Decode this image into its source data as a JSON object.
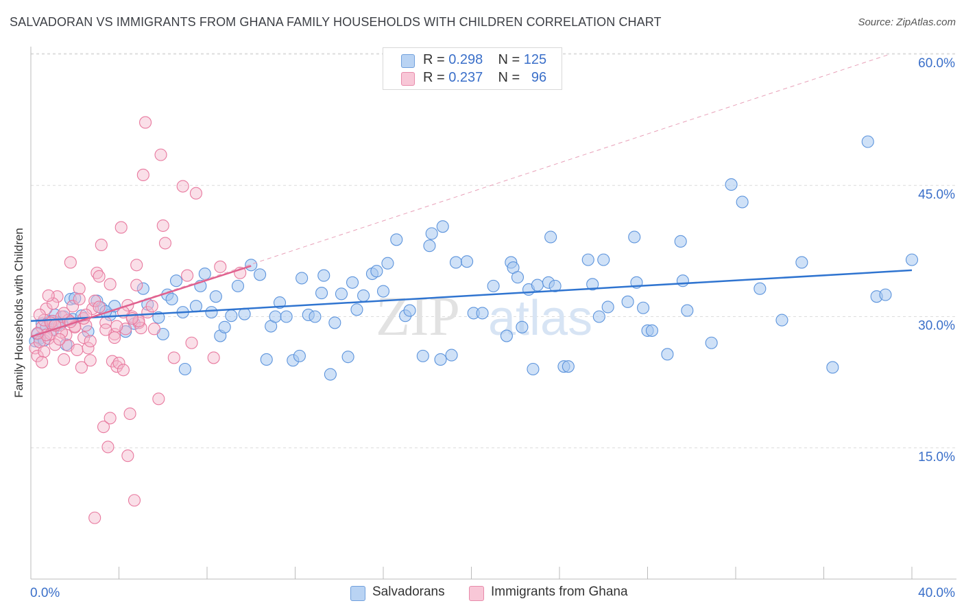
{
  "title": "SALVADORAN VS IMMIGRANTS FROM GHANA FAMILY HOUSEHOLDS WITH CHILDREN CORRELATION CHART",
  "source": "Source: ZipAtlas.com",
  "watermark": {
    "zip": "ZIP",
    "atlas": "atlas"
  },
  "legend_top": [
    {
      "r_label": "R =",
      "r_value": "0.298",
      "n_label": "N =",
      "n_value": "125",
      "color": "#a8c8f0"
    },
    {
      "r_label": "R =",
      "r_value": "0.237",
      "n_label": "N =",
      "n_value": "96",
      "color": "#f5b8cc"
    }
  ],
  "legend_bottom": [
    {
      "label": "Salvadorans",
      "color": "#a8c8f0"
    },
    {
      "label": "Immigrants from Ghana",
      "color": "#f5b8cc"
    }
  ],
  "chart_data": {
    "type": "scatter",
    "title": "SALVADORAN VS IMMIGRANTS FROM GHANA FAMILY HOUSEHOLDS WITH CHILDREN CORRELATION CHART",
    "xlabel": "",
    "ylabel": "Family Households with Children",
    "xlim": [
      0,
      40
    ],
    "ylim": [
      0,
      60
    ],
    "x_tick_labels": [
      "0.0%",
      "40.0%"
    ],
    "y_tick_labels": [
      {
        "value": 15,
        "label": "15.0%"
      },
      {
        "value": 30,
        "label": "30.0%"
      },
      {
        "value": 45,
        "label": "45.0%"
      },
      {
        "value": 60,
        "label": "60.0%"
      }
    ],
    "grid": true,
    "series": [
      {
        "name": "Salvadorans",
        "color": "#5b93dc",
        "fill": "#a8c8f0",
        "trend": {
          "x": [
            0,
            40
          ],
          "y": [
            29.5,
            35.3
          ]
        },
        "points": [
          [
            0.2,
            27.2
          ],
          [
            0.3,
            28.0
          ],
          [
            0.4,
            27.5
          ],
          [
            0.5,
            29.2
          ],
          [
            0.7,
            28.8
          ],
          [
            0.9,
            29.5
          ],
          [
            1.1,
            30.2
          ],
          [
            1.2,
            29.0
          ],
          [
            1.4,
            29.3
          ],
          [
            1.5,
            30.0
          ],
          [
            1.6,
            26.8
          ],
          [
            1.8,
            32.0
          ],
          [
            1.9,
            29.7
          ],
          [
            2.3,
            30.1
          ],
          [
            2.6,
            28.3
          ],
          [
            3.0,
            31.8
          ],
          [
            3.2,
            31.0
          ],
          [
            3.6,
            30.2
          ],
          [
            3.8,
            31.2
          ],
          [
            4.3,
            28.3
          ],
          [
            4.7,
            29.2
          ],
          [
            5.1,
            33.2
          ],
          [
            5.3,
            31.4
          ],
          [
            5.8,
            29.9
          ],
          [
            6.0,
            28.0
          ],
          [
            6.2,
            32.5
          ],
          [
            6.4,
            32.0
          ],
          [
            6.6,
            34.1
          ],
          [
            6.9,
            30.5
          ],
          [
            7.0,
            24.0
          ],
          [
            7.5,
            31.2
          ],
          [
            7.7,
            33.5
          ],
          [
            7.9,
            34.9
          ],
          [
            8.2,
            30.5
          ],
          [
            8.4,
            32.3
          ],
          [
            8.6,
            27.8
          ],
          [
            8.8,
            28.8
          ],
          [
            9.1,
            30.1
          ],
          [
            9.4,
            33.5
          ],
          [
            9.7,
            30.3
          ],
          [
            10.0,
            35.9
          ],
          [
            10.4,
            34.8
          ],
          [
            10.7,
            25.1
          ],
          [
            10.9,
            28.9
          ],
          [
            11.1,
            30.0
          ],
          [
            11.3,
            31.6
          ],
          [
            11.6,
            30.0
          ],
          [
            11.9,
            25.0
          ],
          [
            12.2,
            25.5
          ],
          [
            12.3,
            34.4
          ],
          [
            12.6,
            30.2
          ],
          [
            12.9,
            30.0
          ],
          [
            13.2,
            32.7
          ],
          [
            13.3,
            34.7
          ],
          [
            13.6,
            23.4
          ],
          [
            13.8,
            29.3
          ],
          [
            14.1,
            32.6
          ],
          [
            14.4,
            25.4
          ],
          [
            14.6,
            33.9
          ],
          [
            14.8,
            30.8
          ],
          [
            15.1,
            32.4
          ],
          [
            15.5,
            34.9
          ],
          [
            15.7,
            35.2
          ],
          [
            16.0,
            32.9
          ],
          [
            16.2,
            36.1
          ],
          [
            16.6,
            38.8
          ],
          [
            17.0,
            30.1
          ],
          [
            17.2,
            30.7
          ],
          [
            17.8,
            25.5
          ],
          [
            18.1,
            38.1
          ],
          [
            18.2,
            39.5
          ],
          [
            18.6,
            25.1
          ],
          [
            18.7,
            40.3
          ],
          [
            19.1,
            25.6
          ],
          [
            19.3,
            36.2
          ],
          [
            19.8,
            36.3
          ],
          [
            20.1,
            30.4
          ],
          [
            20.5,
            30.4
          ],
          [
            21.0,
            33.5
          ],
          [
            21.6,
            27.8
          ],
          [
            21.8,
            36.2
          ],
          [
            21.9,
            35.6
          ],
          [
            22.1,
            34.5
          ],
          [
            22.3,
            28.8
          ],
          [
            22.6,
            33.1
          ],
          [
            22.8,
            24.0
          ],
          [
            23.0,
            33.6
          ],
          [
            23.5,
            33.9
          ],
          [
            23.6,
            39.1
          ],
          [
            23.8,
            33.5
          ],
          [
            24.2,
            24.3
          ],
          [
            24.4,
            24.3
          ],
          [
            25.3,
            36.5
          ],
          [
            25.5,
            33.7
          ],
          [
            25.8,
            30.0
          ],
          [
            26.0,
            36.5
          ],
          [
            26.2,
            31.1
          ],
          [
            27.1,
            31.7
          ],
          [
            27.4,
            39.1
          ],
          [
            27.5,
            33.9
          ],
          [
            27.8,
            31.0
          ],
          [
            28.0,
            28.4
          ],
          [
            28.2,
            28.4
          ],
          [
            28.9,
            25.7
          ],
          [
            29.5,
            38.6
          ],
          [
            29.6,
            34.1
          ],
          [
            29.8,
            30.7
          ],
          [
            30.9,
            27.0
          ],
          [
            31.8,
            45.1
          ],
          [
            32.3,
            43.1
          ],
          [
            33.1,
            33.2
          ],
          [
            34.1,
            29.6
          ],
          [
            35.0,
            36.2
          ],
          [
            36.4,
            24.2
          ],
          [
            38.0,
            50.0
          ],
          [
            38.4,
            32.3
          ],
          [
            38.8,
            32.5
          ],
          [
            40.0,
            36.5
          ],
          [
            0.6,
            27.3
          ],
          [
            1.0,
            28.5
          ],
          [
            2.0,
            32.1
          ],
          [
            3.4,
            30.6
          ]
        ]
      },
      {
        "name": "Immigrants from Ghana",
        "color": "#e8789e",
        "fill": "#f5b8cc",
        "trend": {
          "x": [
            0,
            10
          ],
          "y": [
            27.7,
            35.8
          ]
        },
        "trend_extended": {
          "x": [
            0,
            39
          ],
          "y": [
            27.7,
            60.0
          ]
        },
        "points": [
          [
            0.2,
            26.4
          ],
          [
            0.3,
            25.5
          ],
          [
            0.4,
            27.1
          ],
          [
            0.5,
            28.8
          ],
          [
            0.6,
            29.6
          ],
          [
            0.7,
            30.9
          ],
          [
            0.8,
            27.5
          ],
          [
            0.9,
            28.0
          ],
          [
            1.0,
            29.5
          ],
          [
            1.1,
            26.8
          ],
          [
            1.2,
            32.3
          ],
          [
            1.3,
            29.0
          ],
          [
            1.4,
            30.0
          ],
          [
            1.5,
            25.1
          ],
          [
            1.6,
            27.9
          ],
          [
            1.7,
            26.7
          ],
          [
            1.8,
            36.2
          ],
          [
            1.9,
            31.2
          ],
          [
            2.0,
            28.9
          ],
          [
            2.1,
            26.2
          ],
          [
            2.2,
            33.2
          ],
          [
            2.3,
            24.2
          ],
          [
            2.4,
            27.6
          ],
          [
            2.5,
            29.0
          ],
          [
            2.6,
            26.4
          ],
          [
            2.7,
            25.0
          ],
          [
            2.8,
            30.9
          ],
          [
            2.9,
            31.8
          ],
          [
            3.0,
            35.0
          ],
          [
            3.1,
            34.6
          ],
          [
            3.2,
            38.2
          ],
          [
            3.3,
            17.4
          ],
          [
            3.4,
            29.3
          ],
          [
            3.5,
            15.1
          ],
          [
            3.6,
            18.4
          ],
          [
            3.7,
            24.9
          ],
          [
            3.8,
            28.0
          ],
          [
            3.9,
            24.3
          ],
          [
            4.0,
            24.7
          ],
          [
            4.1,
            40.2
          ],
          [
            4.2,
            23.9
          ],
          [
            4.3,
            28.6
          ],
          [
            4.4,
            14.1
          ],
          [
            4.5,
            18.9
          ],
          [
            4.6,
            30.0
          ],
          [
            4.7,
            9.0
          ],
          [
            4.8,
            33.6
          ],
          [
            4.9,
            29.3
          ],
          [
            5.0,
            28.7
          ],
          [
            5.1,
            46.2
          ],
          [
            5.2,
            52.2
          ],
          [
            5.3,
            30.5
          ],
          [
            5.5,
            31.2
          ],
          [
            5.6,
            28.6
          ],
          [
            5.8,
            20.6
          ],
          [
            5.9,
            48.5
          ],
          [
            6.0,
            40.4
          ],
          [
            6.1,
            38.4
          ],
          [
            6.5,
            25.3
          ],
          [
            6.9,
            44.9
          ],
          [
            7.1,
            34.7
          ],
          [
            7.3,
            27.0
          ],
          [
            7.5,
            44.1
          ],
          [
            8.3,
            25.3
          ],
          [
            8.6,
            35.7
          ],
          [
            2.9,
            7.0
          ],
          [
            0.4,
            30.2
          ],
          [
            0.9,
            29.3
          ],
          [
            1.7,
            29.6
          ],
          [
            2.4,
            29.8
          ],
          [
            0.7,
            27.9
          ],
          [
            1.4,
            28.2
          ],
          [
            3.1,
            31.1
          ],
          [
            3.9,
            28.9
          ],
          [
            4.4,
            31.3
          ],
          [
            4.9,
            29.5
          ],
          [
            0.3,
            28.1
          ],
          [
            1.0,
            31.5
          ],
          [
            1.5,
            30.4
          ],
          [
            2.2,
            32.0
          ],
          [
            3.6,
            33.7
          ],
          [
            4.2,
            30.5
          ],
          [
            0.6,
            26.0
          ],
          [
            1.3,
            27.4
          ],
          [
            2.0,
            28.8
          ],
          [
            2.7,
            27.2
          ],
          [
            4.8,
            35.9
          ],
          [
            3.4,
            28.5
          ],
          [
            0.5,
            24.8
          ],
          [
            1.8,
            29.4
          ],
          [
            2.5,
            30.2
          ],
          [
            3.8,
            27.6
          ],
          [
            4.6,
            29.8
          ],
          [
            9.5,
            35.0
          ],
          [
            0.8,
            32.4
          ],
          [
            1.1,
            29.0
          ]
        ]
      }
    ]
  }
}
